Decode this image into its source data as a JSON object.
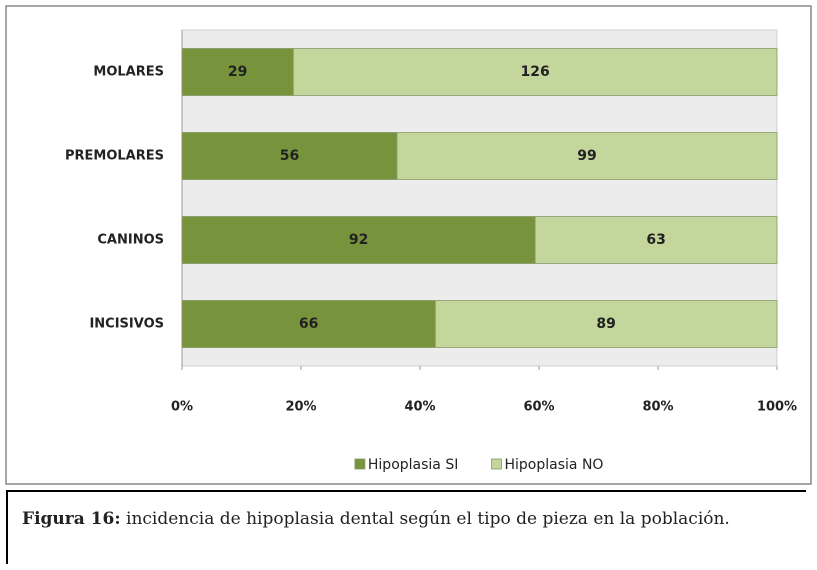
{
  "chart_data": {
    "type": "bar",
    "orientation": "horizontal",
    "stacked": "percent",
    "categories": [
      "MOLARES",
      "PREMOLARES",
      "CANINOS",
      "INCISIVOS"
    ],
    "series": [
      {
        "name": "Hipoplasia SI",
        "color": "#77933c",
        "values": [
          29,
          56,
          92,
          66
        ]
      },
      {
        "name": "Hipoplasia NO",
        "color": "#c3d69b",
        "values": [
          126,
          99,
          63,
          89
        ]
      }
    ],
    "xlim": [
      0,
      100
    ],
    "xticks": [
      {
        "value": 0,
        "label": "0%"
      },
      {
        "value": 20,
        "label": "20%"
      },
      {
        "value": 40,
        "label": "40%"
      },
      {
        "value": 60,
        "label": "60%"
      },
      {
        "value": 80,
        "label": "80%"
      },
      {
        "value": 100,
        "label": "100%"
      }
    ],
    "legend": "bottom"
  },
  "caption": {
    "label": "Figura 16:",
    "text": " incidencia de hipoplasia dental según el tipo de pieza en la población."
  }
}
